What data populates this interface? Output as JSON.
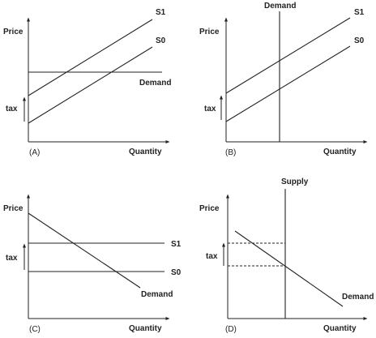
{
  "panels": {
    "A": {
      "panel_label": "(A)",
      "y_axis": "Price",
      "x_axis": "Quantity",
      "tax": "tax",
      "supply_new": "S1",
      "supply_old": "S0",
      "demand": "Demand"
    },
    "B": {
      "panel_label": "(B)",
      "y_axis": "Price",
      "x_axis": "Quantity",
      "tax": "tax",
      "supply_new": "S1",
      "supply_old": "S0",
      "demand": "Demand"
    },
    "C": {
      "panel_label": "(C)",
      "y_axis": "Price",
      "x_axis": "Quantity",
      "tax": "tax",
      "supply_new": "S1",
      "supply_old": "S0",
      "demand": "Demand"
    },
    "D": {
      "panel_label": "(D)",
      "y_axis": "Price",
      "x_axis": "Quantity",
      "tax": "tax",
      "supply": "Supply",
      "demand": "Demand"
    }
  }
}
